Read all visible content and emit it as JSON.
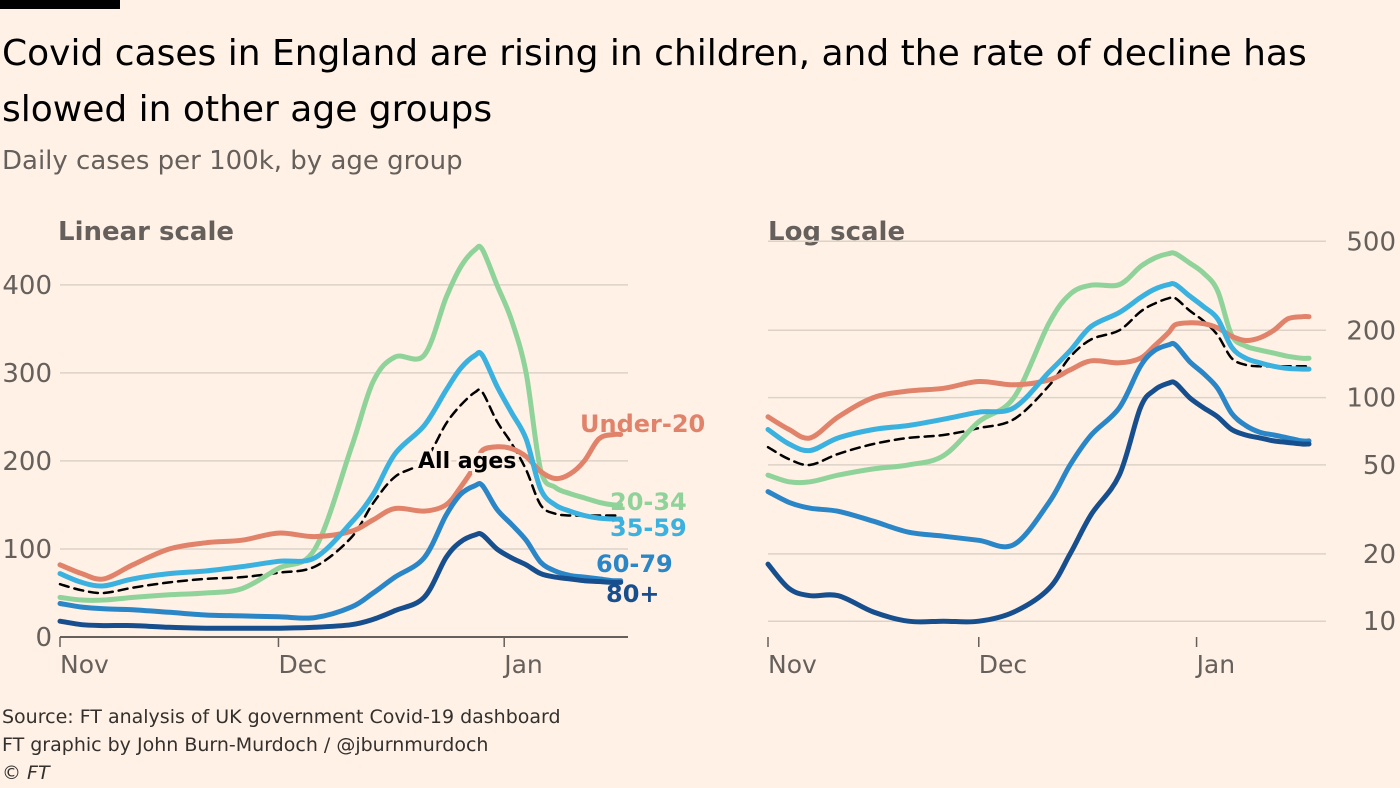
{
  "title": "Covid cases in England are rising in children, and the rate of decline has slowed in other age groups",
  "subtitle": "Daily cases per 100k, by age group",
  "footer": {
    "source": "Source: FT analysis of UK government Covid-19 dashboard",
    "credit": "FT graphic by John Burn-Murdoch / @jburnmurdoch",
    "copyright": "© FT"
  },
  "colors": {
    "background": "#fff1e5",
    "under20": "#e1826a",
    "a20_34": "#8fd39a",
    "a35_59": "#3bb1df",
    "a60_79": "#2b86c8",
    "a80plus": "#174f8e",
    "all_ages": "#000000",
    "grid": "#dcd2c8",
    "axis_text": "#66605c"
  },
  "chart_data": [
    {
      "type": "line",
      "title": "Linear scale",
      "x_ticks": [
        "Nov",
        "Dec",
        "Jan"
      ],
      "yscale": "linear",
      "y_ticks": [
        0,
        100,
        200,
        300,
        400
      ],
      "ylim": [
        0,
        460
      ],
      "grid": true,
      "x_days": [
        0,
        3,
        6,
        10,
        15,
        20,
        25,
        30,
        35,
        40,
        43,
        46,
        50,
        53,
        55,
        57,
        58,
        60,
        62,
        64,
        66,
        68,
        70,
        72,
        74,
        76,
        77
      ],
      "series": [
        {
          "name": "Under-20",
          "key": "under20",
          "values": [
            82,
            72,
            66,
            82,
            100,
            107,
            110,
            118,
            114,
            120,
            133,
            146,
            143,
            150,
            170,
            195,
            212,
            216,
            214,
            205,
            188,
            180,
            185,
            200,
            225,
            230,
            230
          ]
        },
        {
          "name": "20-34",
          "key": "a20_34",
          "values": [
            45,
            42,
            42,
            45,
            48,
            50,
            55,
            78,
            100,
            215,
            290,
            318,
            320,
            385,
            420,
            440,
            440,
            400,
            360,
            300,
            190,
            170,
            163,
            158,
            153,
            150,
            150
          ]
        },
        {
          "name": "35-59",
          "key": "a35_59",
          "values": [
            72,
            62,
            58,
            66,
            72,
            75,
            80,
            86,
            90,
            130,
            162,
            208,
            240,
            280,
            305,
            320,
            320,
            285,
            255,
            225,
            168,
            150,
            143,
            138,
            135,
            134,
            134
          ]
        },
        {
          "name": "60-79",
          "key": "a60_79",
          "values": [
            38,
            34,
            32,
            31,
            28,
            25,
            24,
            23,
            22,
            34,
            50,
            68,
            90,
            138,
            162,
            172,
            172,
            145,
            128,
            110,
            85,
            75,
            70,
            68,
            66,
            64,
            64
          ]
        },
        {
          "name": "80+",
          "key": "a80plus",
          "values": [
            18,
            14,
            13,
            13,
            11,
            10,
            10,
            10,
            11,
            14,
            20,
            30,
            45,
            90,
            108,
            116,
            116,
            100,
            90,
            82,
            72,
            68,
            66,
            64,
            63,
            62,
            62
          ]
        },
        {
          "name": "All ages",
          "key": "all_ages",
          "dashed": true,
          "values": [
            60,
            53,
            50,
            56,
            62,
            66,
            68,
            73,
            80,
            113,
            152,
            182,
            200,
            242,
            263,
            278,
            278,
            245,
            220,
            190,
            150,
            140,
            138,
            138,
            138,
            138,
            138
          ]
        }
      ],
      "annotations": [
        "Under-20",
        "20-34",
        "35-59",
        "60-79",
        "80+",
        "All ages"
      ]
    },
    {
      "type": "line",
      "title": "Log scale",
      "x_ticks": [
        "Nov",
        "Dec",
        "Jan"
      ],
      "yscale": "log",
      "y_ticks": [
        10,
        20,
        50,
        100,
        200,
        500
      ],
      "ylim": [
        8.5,
        550
      ],
      "grid": true,
      "x_days": [
        0,
        3,
        6,
        10,
        15,
        20,
        25,
        30,
        35,
        40,
        43,
        46,
        50,
        53,
        55,
        57,
        58,
        60,
        62,
        64,
        66,
        68,
        70,
        72,
        74,
        76,
        77
      ],
      "series": [
        {
          "name": "Under-20",
          "key": "under20",
          "values": [
            82,
            72,
            66,
            82,
            100,
            107,
            110,
            118,
            114,
            120,
            133,
            146,
            143,
            150,
            170,
            195,
            212,
            216,
            214,
            205,
            188,
            180,
            185,
            200,
            225,
            230,
            230
          ]
        },
        {
          "name": "20-34",
          "key": "a20_34",
          "values": [
            45,
            42,
            42,
            45,
            48,
            50,
            55,
            78,
            100,
            215,
            290,
            318,
            320,
            385,
            420,
            440,
            440,
            400,
            360,
            300,
            190,
            170,
            163,
            158,
            153,
            150,
            150
          ]
        },
        {
          "name": "35-59",
          "key": "a35_59",
          "values": [
            72,
            62,
            58,
            66,
            72,
            75,
            80,
            86,
            90,
            130,
            162,
            208,
            240,
            280,
            305,
            320,
            320,
            285,
            255,
            225,
            168,
            150,
            143,
            138,
            135,
            134,
            134
          ]
        },
        {
          "name": "60-79",
          "key": "a60_79",
          "values": [
            38,
            34,
            32,
            31,
            28,
            25,
            24,
            23,
            22,
            34,
            50,
            68,
            90,
            138,
            162,
            172,
            172,
            145,
            128,
            110,
            85,
            75,
            70,
            68,
            66,
            64,
            64
          ]
        },
        {
          "name": "80+",
          "key": "a80plus",
          "values": [
            18,
            14,
            13,
            13,
            11,
            10,
            10,
            10,
            11,
            14,
            20,
            30,
            45,
            90,
            108,
            116,
            116,
            100,
            90,
            82,
            72,
            68,
            66,
            64,
            63,
            62,
            62
          ]
        },
        {
          "name": "All ages",
          "key": "all_ages",
          "dashed": true,
          "values": [
            60,
            53,
            50,
            56,
            62,
            66,
            68,
            73,
            80,
            113,
            152,
            182,
            200,
            242,
            263,
            278,
            278,
            245,
            220,
            190,
            150,
            140,
            138,
            138,
            138,
            138,
            138
          ]
        }
      ]
    }
  ]
}
